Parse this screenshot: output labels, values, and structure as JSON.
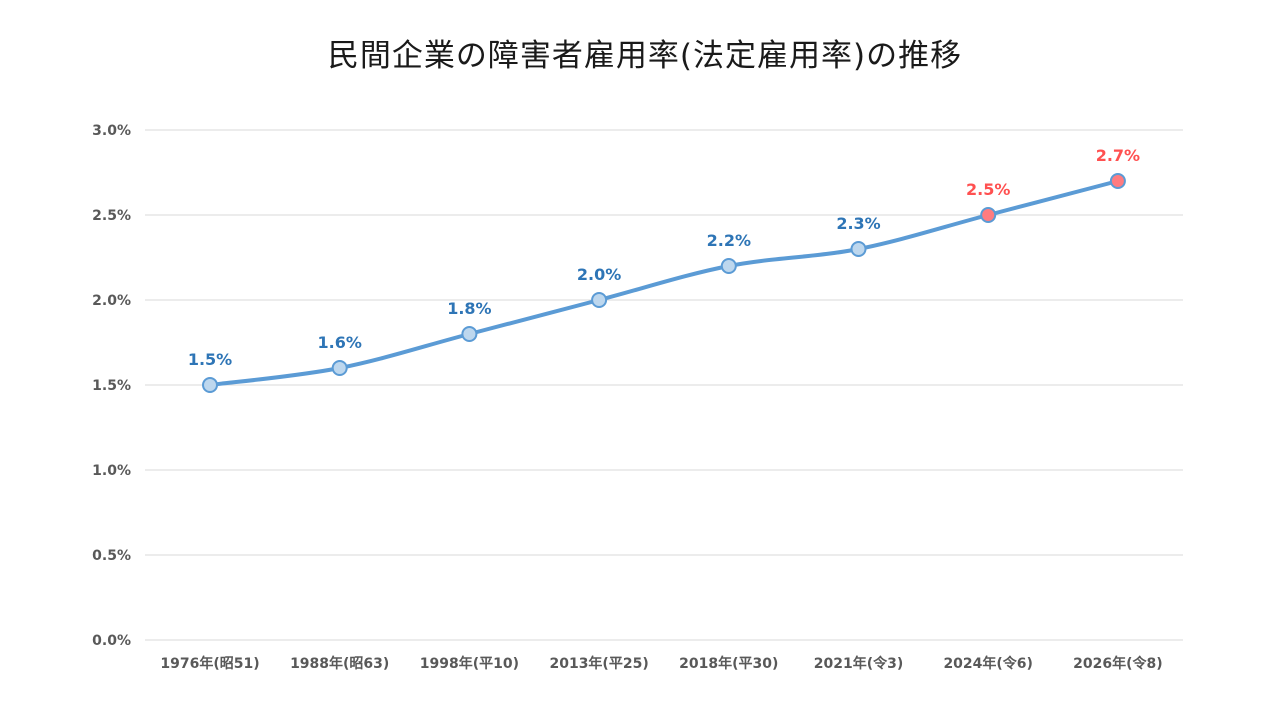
{
  "chart_data": {
    "type": "line",
    "title": "民間企業の障害者雇用率(法定雇用率)の推移",
    "xlabel": "",
    "ylabel": "",
    "categories": [
      "1976年(昭51)",
      "1988年(昭63)",
      "1998年(平10)",
      "2013年(平25)",
      "2018年(平30)",
      "2021年(令3)",
      "2024年(令6)",
      "2026年(令8)"
    ],
    "series": [
      {
        "values": [
          1.5,
          1.6,
          1.8,
          2.0,
          2.2,
          2.3,
          2.5,
          2.7
        ],
        "data_labels": [
          "1.5%",
          "1.6%",
          "1.8%",
          "2.0%",
          "2.2%",
          "2.3%",
          "2.5%",
          "2.7%"
        ]
      }
    ],
    "yticks": [
      0.0,
      0.5,
      1.0,
      1.5,
      2.0,
      2.5,
      3.0
    ],
    "ytick_labels": [
      "0.0%",
      "0.5%",
      "1.0%",
      "1.5%",
      "2.0%",
      "2.5%",
      "3.0%"
    ],
    "ylim": [
      0,
      3.0
    ],
    "grid": "horizontal",
    "legend": "none",
    "smooth_line": true,
    "highlighted_points": [
      6,
      7
    ],
    "colors": {
      "line": "#5b9bd5",
      "marker_fill": "#bdd7ee",
      "marker_stroke": "#5b9bd5",
      "highlight_fill": "#ff7c80",
      "label_normal": "#2e75b6",
      "label_highlight": "#ff5050",
      "grid": "#d9d9d9",
      "axis_text": "#595959"
    }
  }
}
